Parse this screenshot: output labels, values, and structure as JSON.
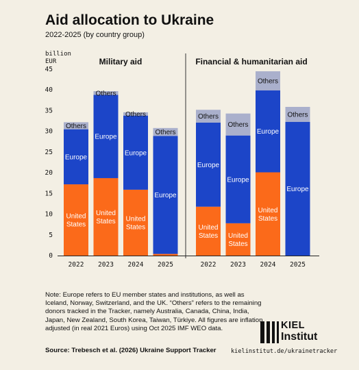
{
  "title": "Aid allocation to Ukraine",
  "subtitle": "2022-2025 (by country group)",
  "chart_data": {
    "type": "bar",
    "stacked": true,
    "unit_label": [
      "billion",
      "EUR"
    ],
    "ylim": [
      0,
      45
    ],
    "yticks": [
      0,
      5,
      10,
      15,
      20,
      25,
      30,
      35,
      40,
      45
    ],
    "grid": false,
    "colors": {
      "United States": "#fb6a1a",
      "Europe": "#1c45c8",
      "Others": "#aab0cc"
    },
    "panels": [
      {
        "title": "Military aid",
        "categories": [
          "2022",
          "2023",
          "2024",
          "2025"
        ],
        "series": [
          {
            "name": "United States",
            "values": [
              17.2,
              18.7,
              15.9,
              0.4
            ],
            "labels": [
              "United\nStates",
              "United\nStates",
              "United\nStates",
              ""
            ]
          },
          {
            "name": "Europe",
            "values": [
              13.3,
              20.1,
              17.9,
              28.5
            ],
            "labels": [
              "Europe",
              "Europe",
              "Europe",
              "Europe"
            ]
          },
          {
            "name": "Others",
            "values": [
              1.7,
              0.9,
              0.8,
              1.9
            ],
            "labels": [
              "Others",
              "Others",
              "Others",
              "Others"
            ]
          }
        ]
      },
      {
        "title": "Financial & humanitarian aid",
        "categories": [
          "2022",
          "2023",
          "2024",
          "2025"
        ],
        "series": [
          {
            "name": "United States",
            "values": [
              11.8,
              7.8,
              20.1,
              0
            ],
            "labels": [
              "United\nStates",
              "United\nStates",
              "United\nStates",
              ""
            ]
          },
          {
            "name": "Europe",
            "values": [
              20.3,
              21.2,
              19.8,
              32.3
            ],
            "labels": [
              "Europe",
              "Europe",
              "Europe",
              "Europe"
            ]
          },
          {
            "name": "Others",
            "values": [
              3.1,
              5.3,
              4.6,
              3.6
            ],
            "labels": [
              "Others",
              "Others",
              "Others",
              "Others"
            ]
          }
        ]
      }
    ]
  },
  "note": "Note: Europe refers to EU member states and institutions, as well as Iceland, Norway, Switzerland, and the UK. “Others” refers to the remaining donors tracked in the Tracker, namely Australia, Canada, China, India, Japan, New Zealand, South Korea, Taiwan, Türkiye. All figures are inflation adjusted (in real 2021 Euros) using Oct 2025 IMF WEO data.",
  "source": "Source: Trebesch et al. (2026) Ukraine Support Tracker",
  "url": "kielinstitut.de/ukrainetracker",
  "logo": {
    "name": "KIEL",
    "sub": "Institut"
  }
}
